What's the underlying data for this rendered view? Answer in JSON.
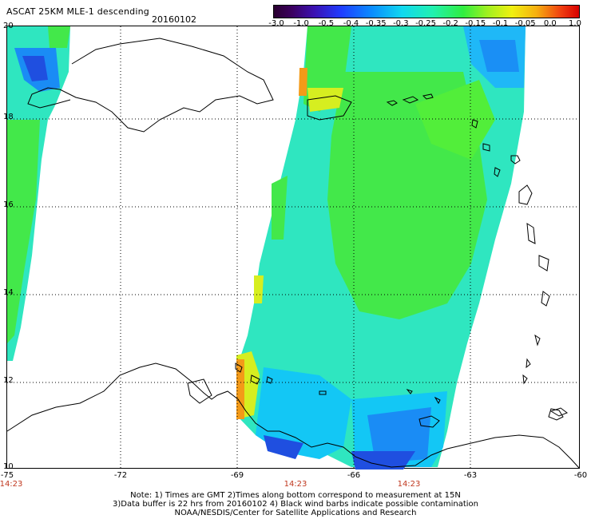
{
  "title": "ASCAT 25KM MLE-1 descending",
  "date": "20160102",
  "colorbar": {
    "ticks": [
      "-3.0",
      "-1.0",
      "-0.5",
      "-0.4",
      "-0.35",
      "-0.3",
      "-0.25",
      "-0.2",
      "-0.15",
      "-0.1",
      "-0.05",
      "0.0",
      "1.0"
    ]
  },
  "axes": {
    "longitude_labels": [
      "-75",
      "-72",
      "-69",
      "-66",
      "-63",
      "-60"
    ],
    "latitude_labels": [
      "20",
      "18",
      "16",
      "14",
      "12",
      "10"
    ]
  },
  "time_labels": [
    "14:23",
    "14:23",
    "14:23"
  ],
  "notes": {
    "line1": "Note: 1) Times are GMT 2)Times along bottom correspond to measurement at 15N",
    "line2": "3)Data buffer is 22 hrs from 20160102 4) Black wind barbs indicate possible contamination",
    "line3": "NOAA/NESDIS/Center for Satellite Applications and Research"
  },
  "colors": {
    "swath_main": "#2fe6c0",
    "swath_green": "#43e84a",
    "swath_blue": "#13c7f5",
    "swath_edge_orange": "#f39a18",
    "time_label": "#c0381f"
  }
}
